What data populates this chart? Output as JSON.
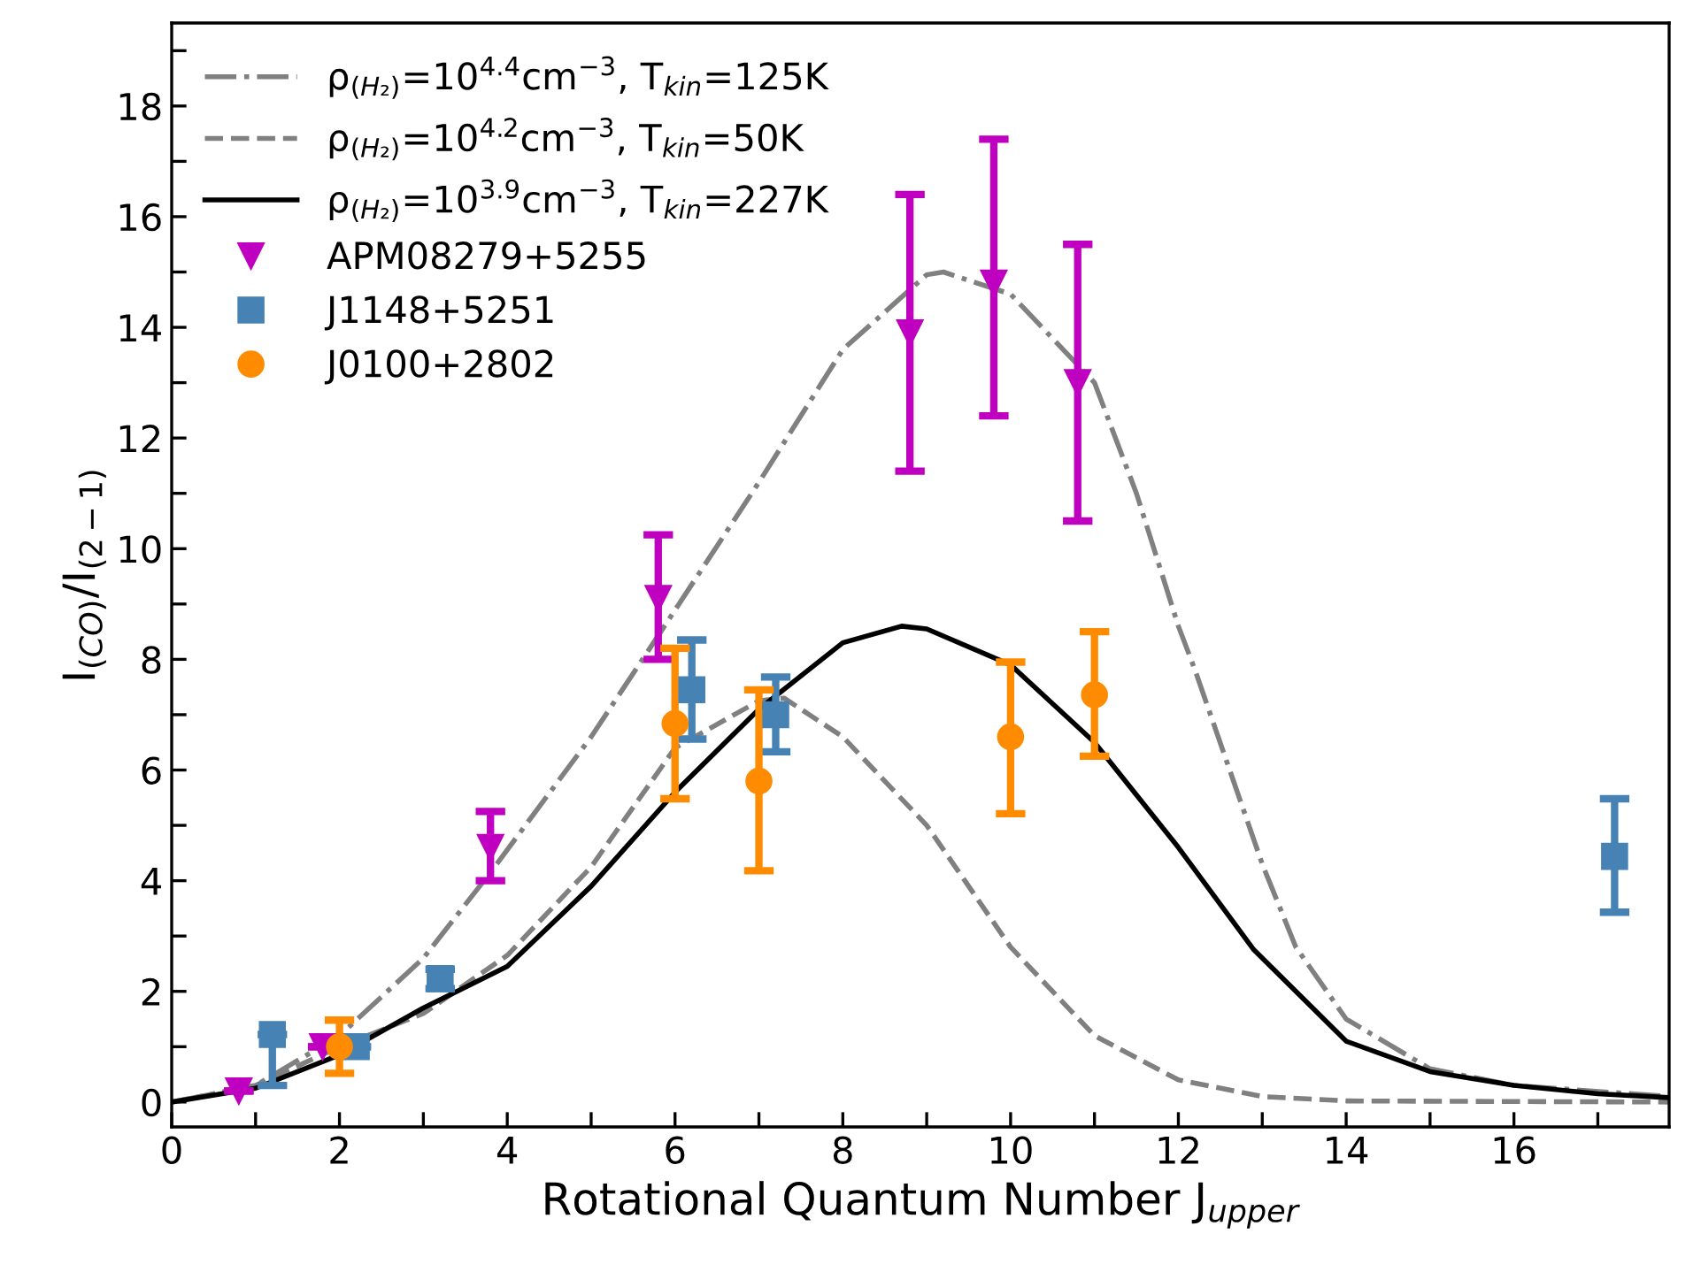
{
  "chart_data": {
    "type": "line",
    "xlabel": "Rotational Quantum Number J$_{upper}$",
    "ylabel": "I$_{(CO)}$/I$_{(2−1)}$",
    "xlim": [
      0,
      17.85
    ],
    "ylim": [
      -0.45,
      19.5
    ],
    "xticks": [
      0,
      {
        "value": 1,
        "label": null
      },
      2,
      {
        "value": 3,
        "label": null
      },
      4,
      {
        "value": 5,
        "label": null
      },
      6,
      {
        "value": 7,
        "label": null
      },
      8,
      {
        "value": 9,
        "label": null
      },
      10,
      {
        "value": 11,
        "label": null
      },
      12,
      {
        "value": 13,
        "label": null
      },
      14,
      {
        "value": 15,
        "label": null
      },
      16,
      {
        "value": 17,
        "label": null
      }
    ],
    "yticks": [
      0,
      {
        "value": 1,
        "label": null
      },
      2,
      {
        "value": 3,
        "label": null
      },
      4,
      {
        "value": 5,
        "label": null
      },
      6,
      {
        "value": 7,
        "label": null
      },
      8,
      {
        "value": 9,
        "label": null
      },
      10,
      {
        "value": 11,
        "label": null
      },
      12,
      {
        "value": 13,
        "label": null
      },
      14,
      {
        "value": 15,
        "label": null
      },
      16,
      {
        "value": 17,
        "label": null
      },
      18,
      {
        "value": 19,
        "label": null
      }
    ],
    "grid": false,
    "legend": "top left",
    "series": [
      {
        "name": "ρ$_{(H₂)}$=10$^{4.4}$cm$^{−3}$, T$_{kin}$=125K",
        "line_style": "dashdot",
        "marker": "none",
        "color": "#808080",
        "x": [
          0,
          1,
          2,
          3,
          3.8,
          5,
          5.7,
          7,
          8,
          9,
          9.2,
          10,
          11,
          11.5,
          12,
          12.2,
          13,
          13.4,
          14,
          15,
          16,
          17.85
        ],
        "values": [
          0,
          0.3,
          1.2,
          2.6,
          4.15,
          6.6,
          8.2,
          11.2,
          13.6,
          14.95,
          15.0,
          14.6,
          13.0,
          11.0,
          8.6,
          7.8,
          4.3,
          2.8,
          1.5,
          0.6,
          0.3,
          0.1
        ]
      },
      {
        "name": "ρ$_{(H₂)}$=10$^{4.2}$cm$^{−3}$, T$_{kin}$=50K",
        "line_style": "dashed",
        "marker": "none",
        "color": "#808080",
        "x": [
          0,
          1,
          2,
          3,
          4,
          5,
          6,
          7,
          7.3,
          8,
          9,
          10,
          11,
          12,
          13,
          14,
          17.85
        ],
        "values": [
          0,
          0.3,
          1.0,
          1.6,
          2.65,
          4.25,
          6.4,
          7.25,
          7.3,
          6.6,
          5.0,
          2.8,
          1.2,
          0.4,
          0.1,
          0.02,
          0
        ]
      },
      {
        "name": "ρ$_{(H₂)}$=10$^{3.9}$cm$^{−3}$, T$_{kin}$=227K",
        "line_style": "solid",
        "marker": "none",
        "color": "#000000",
        "x": [
          0,
          1,
          2,
          3,
          4,
          5,
          6,
          7,
          8,
          8.7,
          9,
          10,
          11,
          12,
          12.9,
          14,
          15,
          16,
          17,
          17.85
        ],
        "values": [
          0,
          0.25,
          0.85,
          1.7,
          2.45,
          3.9,
          5.6,
          7.1,
          8.3,
          8.6,
          8.55,
          7.9,
          6.5,
          4.6,
          2.75,
          1.1,
          0.55,
          0.3,
          0.15,
          0.08
        ]
      },
      {
        "name": "APM08279+5255",
        "type": "scatter",
        "marker": "triangle",
        "color": "#c000c0",
        "x": [
          0.8,
          1.8,
          3.8,
          5.8,
          8.8,
          9.8,
          10.8
        ],
        "values": [
          0.2,
          1.0,
          4.6,
          9.1,
          13.9,
          14.8,
          13.0
        ],
        "errors": [
          null,
          null,
          [
            4.0,
            5.25
          ],
          [
            8.0,
            10.25
          ],
          [
            11.4,
            16.4
          ],
          [
            12.4,
            17.4
          ],
          [
            10.5,
            15.5
          ]
        ]
      },
      {
        "name": "J1148+5251",
        "type": "scatter",
        "marker": "square",
        "color": "#4682b4",
        "x": [
          1.2,
          2.2,
          3.2,
          6.2,
          7.2,
          17.2
        ],
        "values": [
          1.22,
          1.0,
          2.23,
          7.45,
          7.0,
          4.44
        ],
        "errors": [
          [
            0.3,
            1.22
          ],
          null,
          [
            2.05,
            2.4
          ],
          [
            6.56,
            8.35
          ],
          [
            6.33,
            7.68
          ],
          [
            3.43,
            5.48
          ]
        ]
      },
      {
        "name": "J0100+2802",
        "type": "scatter",
        "marker": "circle",
        "color": "#ff8c00",
        "x": [
          2,
          6,
          7,
          10,
          11
        ],
        "values": [
          1.0,
          6.84,
          5.8,
          6.6,
          7.36
        ],
        "errors": [
          [
            0.52,
            1.48
          ],
          [
            5.48,
            8.2
          ],
          [
            4.18,
            7.45
          ],
          [
            5.21,
            7.95
          ],
          [
            6.25,
            8.5
          ]
        ]
      }
    ]
  }
}
